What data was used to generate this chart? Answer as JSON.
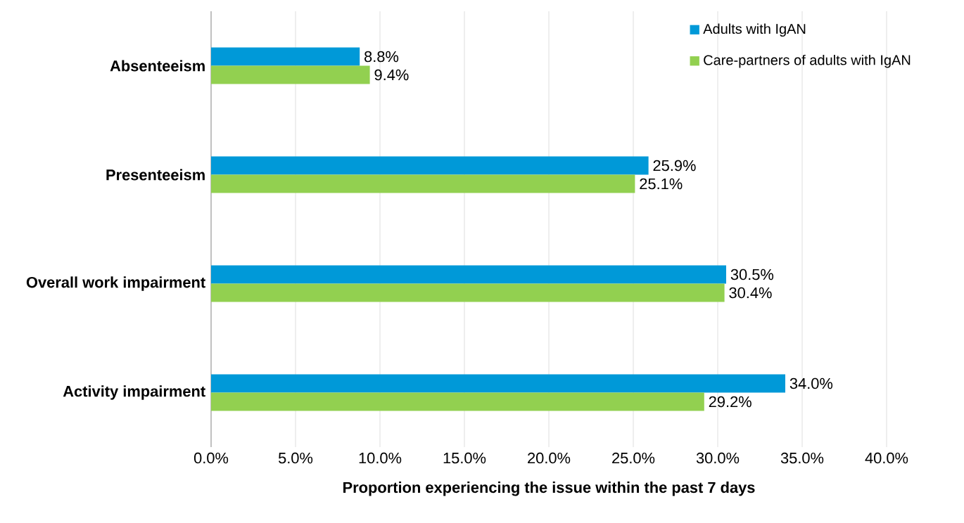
{
  "chart_data": {
    "type": "bar",
    "orientation": "horizontal",
    "xlabel": "Proportion experiencing the issue within the past 7 days",
    "categories": [
      "Absenteeism",
      "Presenteeism",
      "Overall work impairment",
      "Activity impairment"
    ],
    "series": [
      {
        "name": "Adults with IgAN",
        "color": "#0099d8",
        "values": [
          8.8,
          25.9,
          30.5,
          34.0
        ],
        "value_labels": [
          "8.8%",
          "25.9%",
          "30.5%",
          "34.0%"
        ]
      },
      {
        "name": "Care-partners of adults with IgAN",
        "color": "#92d050",
        "values": [
          9.4,
          25.1,
          30.4,
          29.2
        ],
        "value_labels": [
          "9.4%",
          "25.1%",
          "30.4%",
          "29.2%"
        ]
      }
    ],
    "xlim": [
      0,
      40
    ],
    "xticks": [
      {
        "value": 0,
        "label": "0.0%"
      },
      {
        "value": 5,
        "label": "5.0%"
      },
      {
        "value": 10,
        "label": "10.0%"
      },
      {
        "value": 15,
        "label": "15.0%"
      },
      {
        "value": 20,
        "label": "20.0%"
      },
      {
        "value": 25,
        "label": "25.0%"
      },
      {
        "value": 30,
        "label": "30.0%"
      },
      {
        "value": 35,
        "label": "35.0%"
      },
      {
        "value": 40,
        "label": "40.0%"
      }
    ],
    "grid": "x",
    "legend": "top right"
  }
}
